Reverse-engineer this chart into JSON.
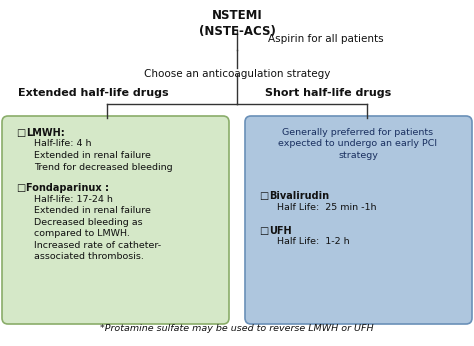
{
  "title_top": "NSTEMI\n(NSTE-ACS)",
  "aspirin_text": "Aspirin for all patients",
  "choose_text": "Choose an anticoagulation strategy",
  "left_title": "Extended half-life drugs",
  "right_title": "Short half-life drugs",
  "left_box_color": "#d5e8c8",
  "right_box_color": "#aec6de",
  "left_edge_color": "#8aad6a",
  "right_edge_color": "#6a90b8",
  "right_intro": "Generally preferred for patients\nexpected to undergo an early PCI\nstrategy",
  "footer": "*Protamine sulfate may be used to reverse LMWH or UFH",
  "bg_color": "#ffffff",
  "line_color": "#333333",
  "text_color": "#111111",
  "right_intro_color": "#1a3060"
}
